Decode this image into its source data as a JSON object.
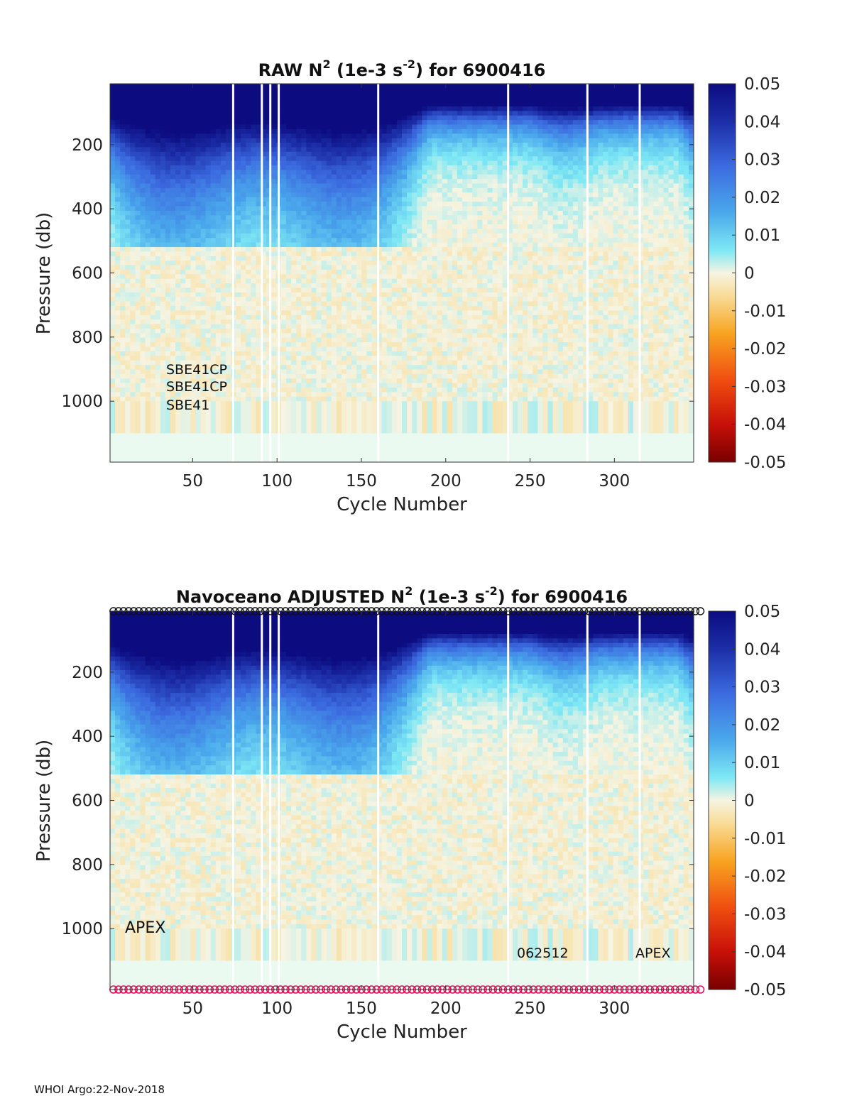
{
  "chart_data": [
    {
      "type": "heatmap",
      "title": "RAW N² (1e-3 s⁻²) for 6900416",
      "title_parts": {
        "a": "RAW N",
        "sup1": "2",
        "b": " (1e-3 s",
        "sup2": "-2",
        "c": ") for 6900416"
      },
      "xlabel": "Cycle Number",
      "ylabel": "Pressure (db)",
      "xlim": [
        1,
        347
      ],
      "ylim": [
        1190,
        10
      ],
      "xticks": [
        50,
        100,
        150,
        200,
        250,
        300
      ],
      "yticks": [
        200,
        400,
        600,
        800,
        1000
      ],
      "colorbar": {
        "min": -0.05,
        "max": 0.05,
        "ticks": [
          0.05,
          0.04,
          0.03,
          0.02,
          0.01,
          0,
          -0.01,
          -0.02,
          -0.03,
          -0.04,
          -0.05
        ]
      },
      "gap_cycles": [
        74,
        91,
        96,
        101,
        160,
        237,
        284,
        315
      ],
      "annotations": [
        "SBE41CP",
        "SBE41CP",
        "SBE41"
      ]
    },
    {
      "type": "heatmap",
      "title": "Navoceano ADJUSTED N² (1e-3 s⁻²) for 6900416",
      "title_parts": {
        "a": "Navoceano  ADJUSTED N",
        "sup1": "2",
        "b": " (1e-3 s",
        "sup2": "-2",
        "c": ") for 6900416"
      },
      "xlabel": "Cycle Number",
      "ylabel": "Pressure (db)",
      "xlim": [
        1,
        347
      ],
      "ylim": [
        1190,
        10
      ],
      "xticks": [
        50,
        100,
        150,
        200,
        250,
        300
      ],
      "yticks": [
        200,
        400,
        600,
        800,
        1000
      ],
      "colorbar": {
        "min": -0.05,
        "max": 0.05,
        "ticks": [
          0.05,
          0.04,
          0.03,
          0.02,
          0.01,
          0,
          -0.01,
          -0.02,
          -0.03,
          -0.04,
          -0.05
        ]
      },
      "gap_cycles": [
        74,
        91,
        96,
        101,
        160,
        237,
        284,
        315
      ],
      "annotations": [
        "APEX",
        "062512",
        "APEX"
      ]
    }
  ],
  "footer": "WHOI Argo:22-Nov-2018"
}
